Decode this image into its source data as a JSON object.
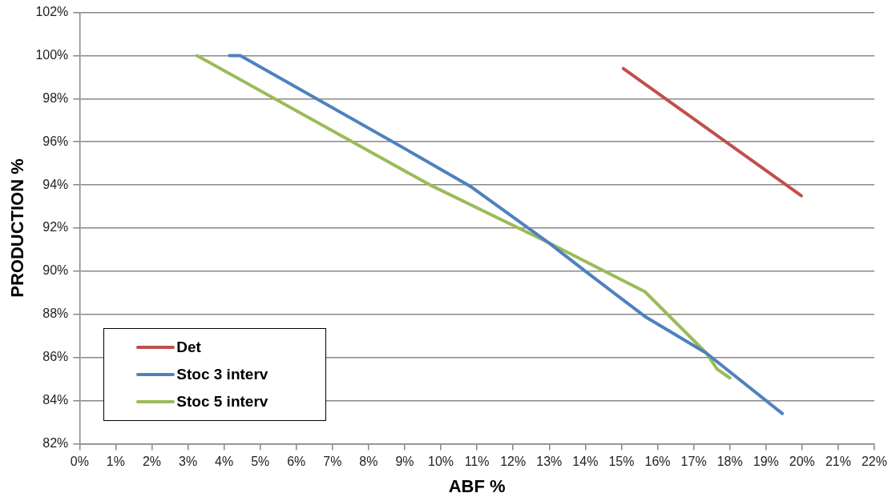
{
  "chart_data": {
    "type": "line",
    "xlabel": "ABF %",
    "ylabel": "PRODUCTION %",
    "xlim": [
      0,
      22
    ],
    "ylim": [
      82,
      102
    ],
    "xticks": [
      {
        "value": 0,
        "label": "0%"
      },
      {
        "value": 1,
        "label": "1%"
      },
      {
        "value": 2,
        "label": "2%"
      },
      {
        "value": 3,
        "label": "3%"
      },
      {
        "value": 4,
        "label": "4%"
      },
      {
        "value": 5,
        "label": "5%"
      },
      {
        "value": 6,
        "label": "6%"
      },
      {
        "value": 7,
        "label": "7%"
      },
      {
        "value": 8,
        "label": "8%"
      },
      {
        "value": 9,
        "label": "9%"
      },
      {
        "value": 10,
        "label": "10%"
      },
      {
        "value": 11,
        "label": "11%"
      },
      {
        "value": 12,
        "label": "12%"
      },
      {
        "value": 13,
        "label": "13%"
      },
      {
        "value": 14,
        "label": "14%"
      },
      {
        "value": 15,
        "label": "15%"
      },
      {
        "value": 16,
        "label": "16%"
      },
      {
        "value": 17,
        "label": "17%"
      },
      {
        "value": 18,
        "label": "18%"
      },
      {
        "value": 19,
        "label": "19%"
      },
      {
        "value": 20,
        "label": "20%"
      },
      {
        "value": 21,
        "label": "21%"
      },
      {
        "value": 22,
        "label": "22%"
      }
    ],
    "yticks": [
      {
        "value": 82,
        "label": "82%"
      },
      {
        "value": 84,
        "label": "84%"
      },
      {
        "value": 86,
        "label": "86%"
      },
      {
        "value": 88,
        "label": "88%"
      },
      {
        "value": 90,
        "label": "90%"
      },
      {
        "value": 92,
        "label": "92%"
      },
      {
        "value": 94,
        "label": "94%"
      },
      {
        "value": 96,
        "label": "96%"
      },
      {
        "value": 98,
        "label": "98%"
      },
      {
        "value": 100,
        "label": "100%"
      },
      {
        "value": 102,
        "label": "102%"
      }
    ],
    "grid": "y",
    "legend": "bottom left",
    "marker": "none",
    "line_style": "solid",
    "series": [
      {
        "name": "Det",
        "color": "#c0504d",
        "x": [
          15.05,
          19.98
        ],
        "values": [
          99.4,
          93.5
        ]
      },
      {
        "name": "Stoc 3 interv",
        "color": "#4f81bd",
        "x": [
          4.15,
          4.45,
          9.3,
          10.85,
          13.0,
          14.0,
          15.65,
          17.35,
          19.45
        ],
        "values": [
          100,
          100,
          95.4,
          93.9,
          91.3,
          90.0,
          87.9,
          86.2,
          83.4
        ]
      },
      {
        "name": "Stoc 5 interv",
        "color": "#9bbb59",
        "x": [
          3.25,
          8.25,
          9.7,
          12.95,
          15.65,
          17.35,
          17.65,
          18.0
        ],
        "values": [
          100,
          95.35,
          94.0,
          91.35,
          89.05,
          86.2,
          85.45,
          85.05
        ]
      }
    ]
  }
}
